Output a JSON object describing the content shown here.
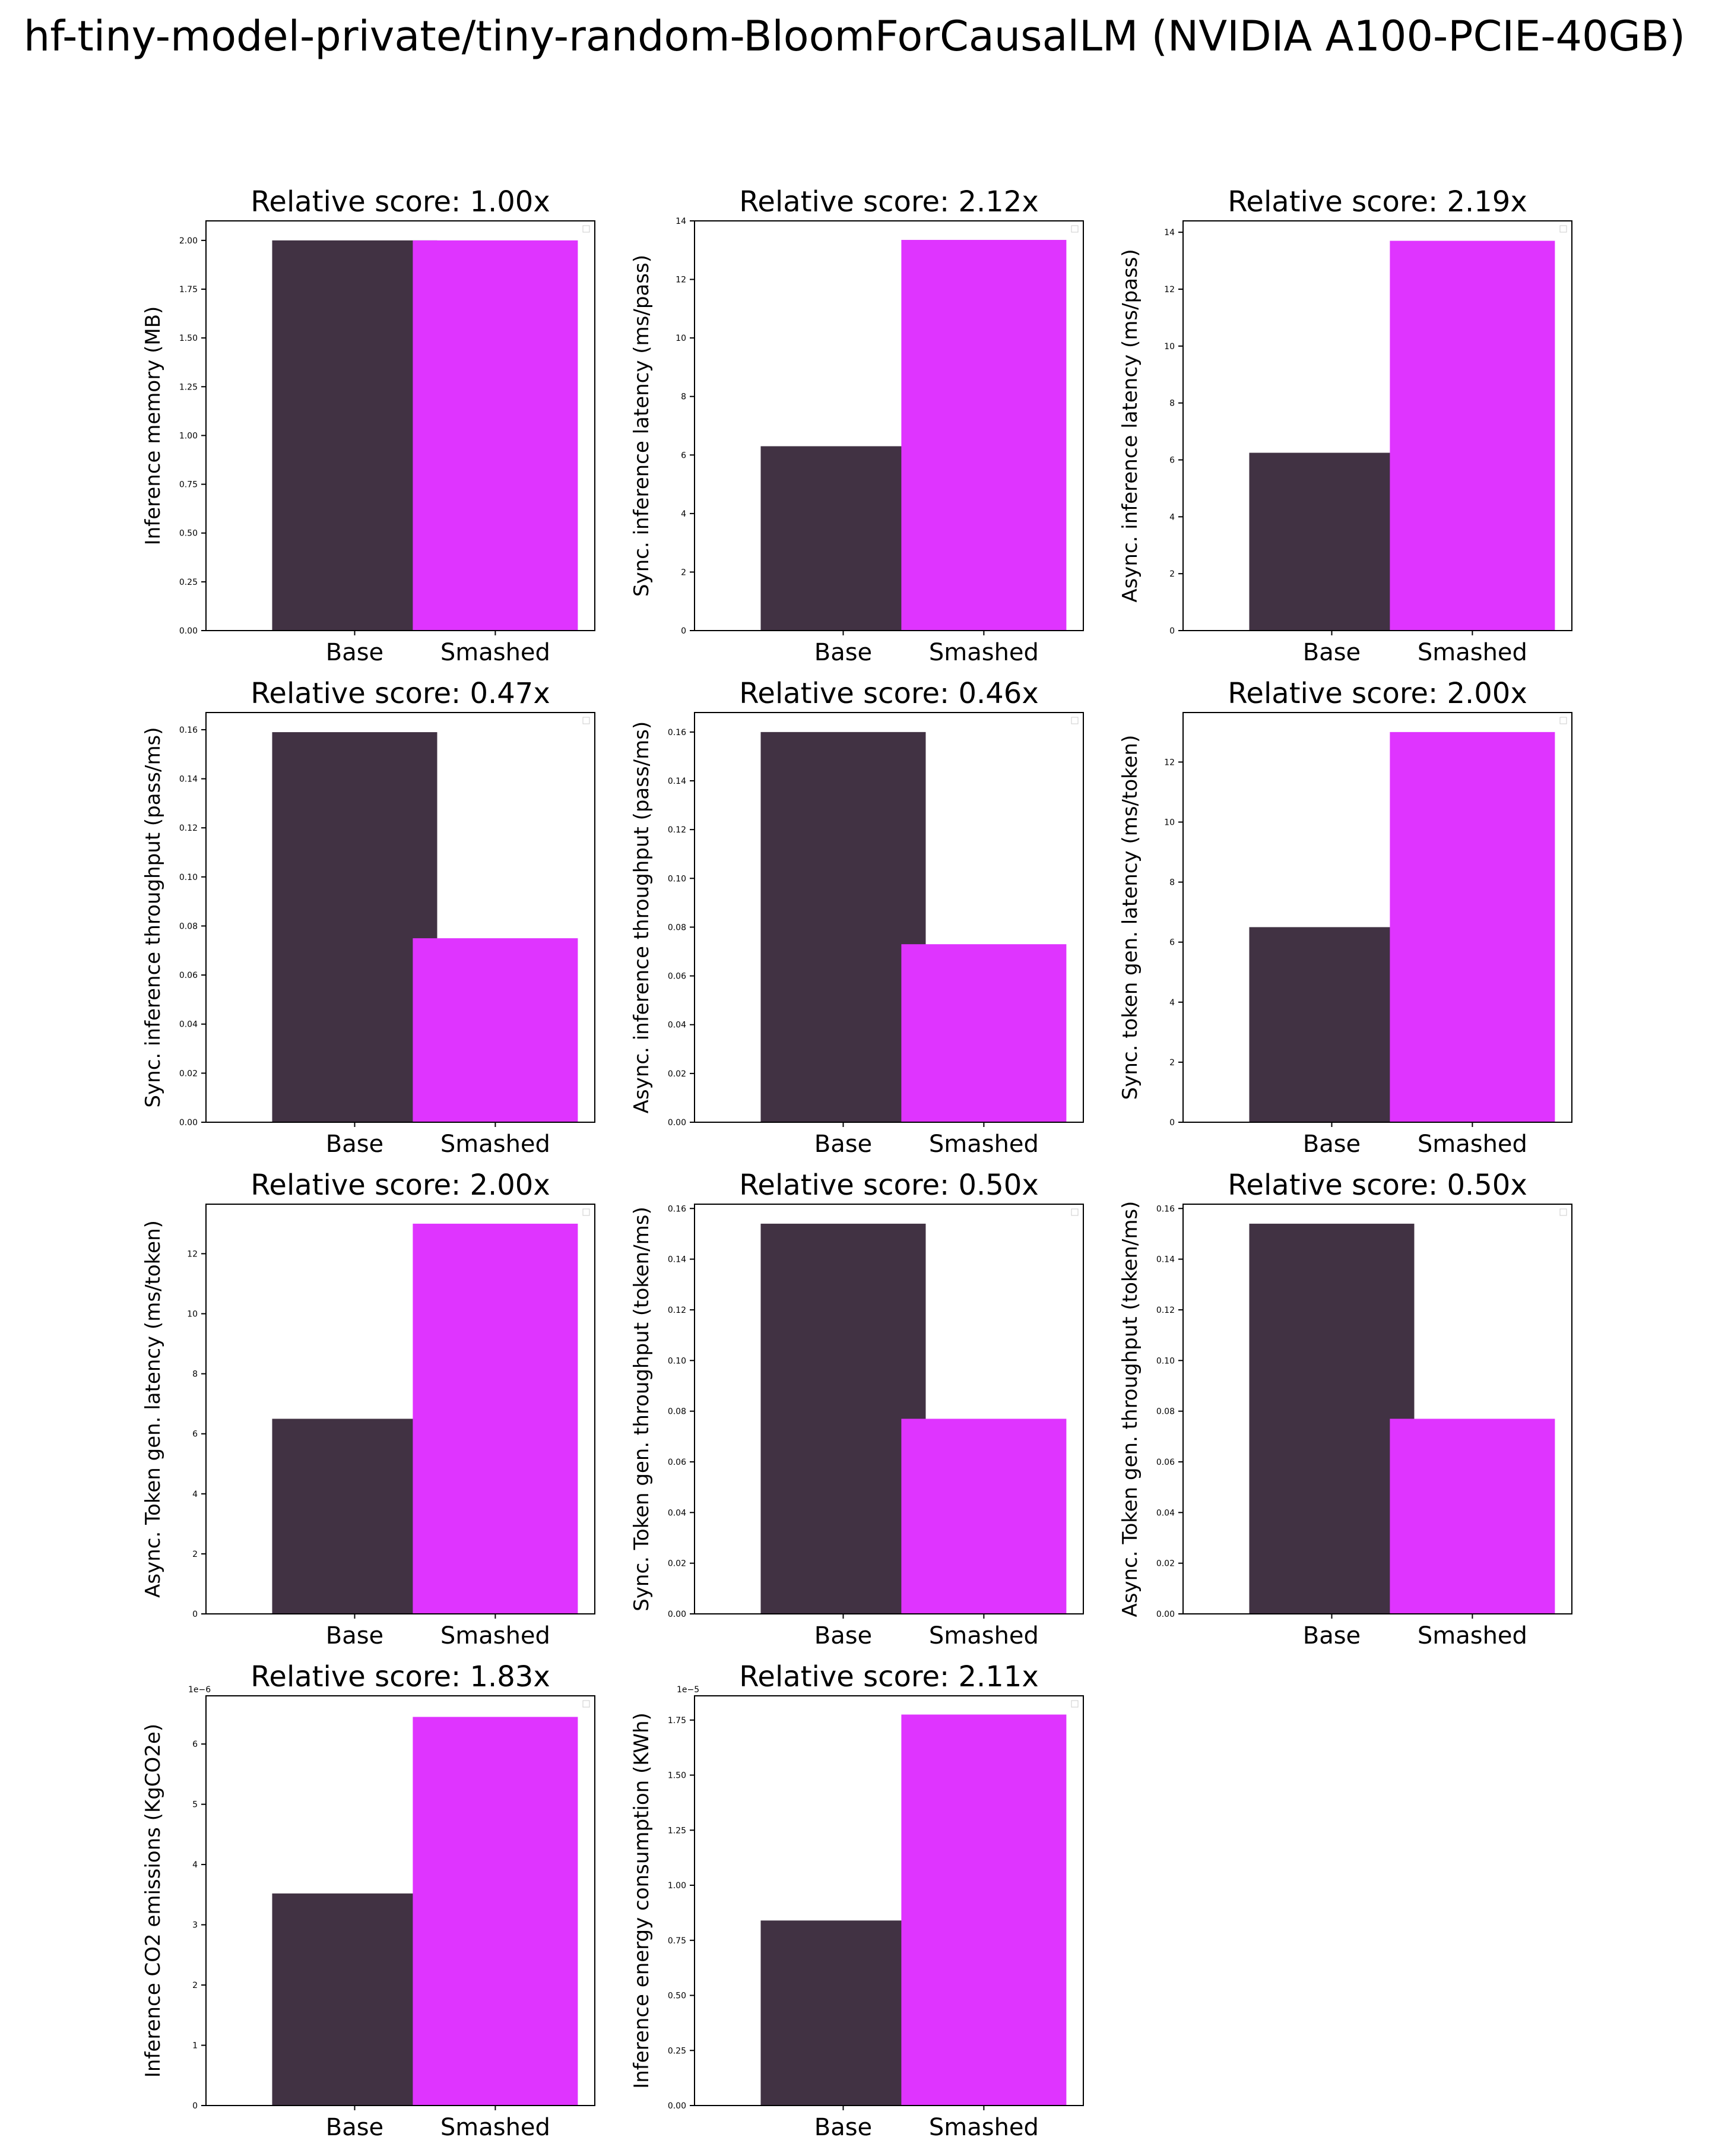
{
  "figure": {
    "title": "hf-tiny-model-private/tiny-random-BloomForCausalLM (NVIDIA A100-PCIE-40GB)"
  },
  "colors": {
    "base": "#413243",
    "smashed": "#df34ff",
    "axis": "#000000"
  },
  "chart_data": [
    {
      "type": "bar",
      "title": "Relative score: 1.00x",
      "ylabel": "Inference memory (MB)",
      "categories": [
        "Base",
        "Smashed"
      ],
      "values": [
        2.0,
        2.0
      ],
      "ylim": [
        0,
        2.1
      ],
      "yticks": [
        0.0,
        0.25,
        0.5,
        0.75,
        1.0,
        1.25,
        1.5,
        1.75,
        2.0
      ],
      "ytick_labels": [
        "0.00",
        "0.25",
        "0.50",
        "0.75",
        "1.00",
        "1.25",
        "1.50",
        "1.75",
        "2.00"
      ],
      "offset_label": ""
    },
    {
      "type": "bar",
      "title": "Relative score: 2.12x",
      "ylabel": "Sync. inference latency (ms/pass)",
      "categories": [
        "Base",
        "Smashed"
      ],
      "values": [
        6.3,
        13.35
      ],
      "ylim": [
        0,
        14.0
      ],
      "yticks": [
        0,
        2,
        4,
        6,
        8,
        10,
        12,
        14
      ],
      "ytick_labels": [
        "0",
        "2",
        "4",
        "6",
        "8",
        "10",
        "12",
        "14"
      ],
      "offset_label": ""
    },
    {
      "type": "bar",
      "title": "Relative score: 2.19x",
      "ylabel": "Async. inference latency (ms/pass)",
      "categories": [
        "Base",
        "Smashed"
      ],
      "values": [
        6.25,
        13.7
      ],
      "ylim": [
        0,
        14.4
      ],
      "yticks": [
        0,
        2,
        4,
        6,
        8,
        10,
        12,
        14
      ],
      "ytick_labels": [
        "0",
        "2",
        "4",
        "6",
        "8",
        "10",
        "12",
        "14"
      ],
      "offset_label": ""
    },
    {
      "type": "bar",
      "title": "Relative score: 0.47x",
      "ylabel": "Sync. inference throughput (pass/ms)",
      "categories": [
        "Base",
        "Smashed"
      ],
      "values": [
        0.159,
        0.075
      ],
      "ylim": [
        0,
        0.167
      ],
      "yticks": [
        0.0,
        0.02,
        0.04,
        0.06,
        0.08,
        0.1,
        0.12,
        0.14,
        0.16
      ],
      "ytick_labels": [
        "0.00",
        "0.02",
        "0.04",
        "0.06",
        "0.08",
        "0.10",
        "0.12",
        "0.14",
        "0.16"
      ],
      "offset_label": ""
    },
    {
      "type": "bar",
      "title": "Relative score: 0.46x",
      "ylabel": "Async. inference throughput (pass/ms)",
      "categories": [
        "Base",
        "Smashed"
      ],
      "values": [
        0.16,
        0.073
      ],
      "ylim": [
        0,
        0.168
      ],
      "yticks": [
        0.0,
        0.02,
        0.04,
        0.06,
        0.08,
        0.1,
        0.12,
        0.14,
        0.16
      ],
      "ytick_labels": [
        "0.00",
        "0.02",
        "0.04",
        "0.06",
        "0.08",
        "0.10",
        "0.12",
        "0.14",
        "0.16"
      ],
      "offset_label": ""
    },
    {
      "type": "bar",
      "title": "Relative score: 2.00x",
      "ylabel": "Sync. token gen. latency (ms/token)",
      "categories": [
        "Base",
        "Smashed"
      ],
      "values": [
        6.5,
        13.0
      ],
      "ylim": [
        0,
        13.65
      ],
      "yticks": [
        0,
        2,
        4,
        6,
        8,
        10,
        12
      ],
      "ytick_labels": [
        "0",
        "2",
        "4",
        "6",
        "8",
        "10",
        "12"
      ],
      "offset_label": ""
    },
    {
      "type": "bar",
      "title": "Relative score: 2.00x",
      "ylabel": "Async. Token gen. latency (ms/token)",
      "categories": [
        "Base",
        "Smashed"
      ],
      "values": [
        6.5,
        13.0
      ],
      "ylim": [
        0,
        13.65
      ],
      "yticks": [
        0,
        2,
        4,
        6,
        8,
        10,
        12
      ],
      "ytick_labels": [
        "0",
        "2",
        "4",
        "6",
        "8",
        "10",
        "12"
      ],
      "offset_label": ""
    },
    {
      "type": "bar",
      "title": "Relative score: 0.50x",
      "ylabel": "Sync. Token gen. throughput (token/ms)",
      "categories": [
        "Base",
        "Smashed"
      ],
      "values": [
        0.154,
        0.077
      ],
      "ylim": [
        0,
        0.1617
      ],
      "yticks": [
        0.0,
        0.02,
        0.04,
        0.06,
        0.08,
        0.1,
        0.12,
        0.14,
        0.16
      ],
      "ytick_labels": [
        "0.00",
        "0.02",
        "0.04",
        "0.06",
        "0.08",
        "0.10",
        "0.12",
        "0.14",
        "0.16"
      ],
      "offset_label": ""
    },
    {
      "type": "bar",
      "title": "Relative score: 0.50x",
      "ylabel": "Async. Token gen. throughput (token/ms)",
      "categories": [
        "Base",
        "Smashed"
      ],
      "values": [
        0.154,
        0.077
      ],
      "ylim": [
        0,
        0.1617
      ],
      "yticks": [
        0.0,
        0.02,
        0.04,
        0.06,
        0.08,
        0.1,
        0.12,
        0.14,
        0.16
      ],
      "ytick_labels": [
        "0.00",
        "0.02",
        "0.04",
        "0.06",
        "0.08",
        "0.10",
        "0.12",
        "0.14",
        "0.16"
      ],
      "offset_label": ""
    },
    {
      "type": "bar",
      "title": "Relative score: 1.83x",
      "ylabel": "Inference CO2 emissions (KgCO2e)",
      "categories": [
        "Base",
        "Smashed"
      ],
      "values": [
        3.52e-06,
        6.45e-06
      ],
      "ylim": [
        0,
        6.8e-06
      ],
      "yticks": [
        0,
        1e-06,
        2e-06,
        3e-06,
        4e-06,
        5e-06,
        6e-06
      ],
      "ytick_labels": [
        "0",
        "1",
        "2",
        "3",
        "4",
        "5",
        "6"
      ],
      "offset_label": "1e−6"
    },
    {
      "type": "bar",
      "title": "Relative score: 2.11x",
      "ylabel": "Inference energy consumption (KWh)",
      "categories": [
        "Base",
        "Smashed"
      ],
      "values": [
        8.4e-06,
        1.775e-05
      ],
      "ylim": [
        0,
        1.86e-05
      ],
      "yticks": [
        0,
        2.5e-06,
        5e-06,
        7.5e-06,
        1e-05,
        1.25e-05,
        1.5e-05,
        1.75e-05
      ],
      "ytick_labels": [
        "0.00",
        "0.25",
        "0.50",
        "0.75",
        "1.00",
        "1.25",
        "1.50",
        "1.75"
      ],
      "offset_label": "1e−5"
    }
  ]
}
